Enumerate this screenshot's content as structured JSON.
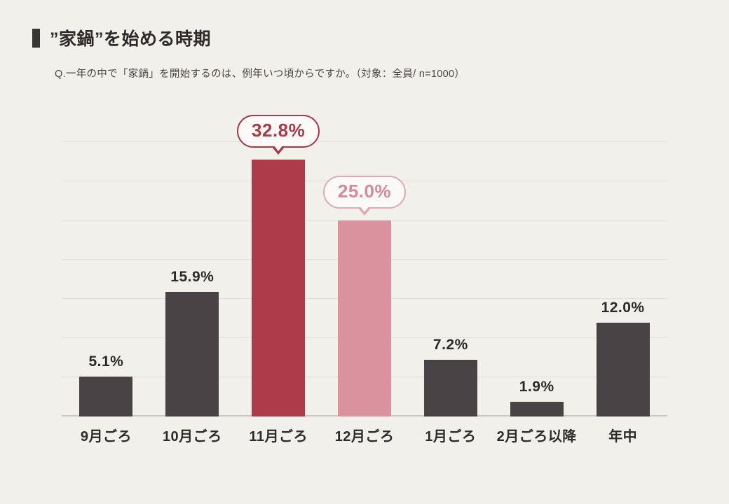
{
  "page": {
    "title": "”家鍋”を始める時期",
    "subtitle": "Q.一年の中で「家鍋」を開始するのは、例年いつ頃からですか。（対象：全員/ n=1000）"
  },
  "chart_data": {
    "type": "bar",
    "title": "”家鍋”を始める時期",
    "subtitle": "Q.一年の中で「家鍋」を開始するのは、例年いつ頃からですか。（対象：全員/ n=1000）",
    "categories": [
      "9月ごろ",
      "10月ごろ",
      "11月ごろ",
      "12月ごろ",
      "1月ごろ",
      "2月ごろ以降",
      "年中"
    ],
    "values": [
      5.1,
      15.9,
      32.8,
      25.0,
      7.2,
      1.9,
      12.0
    ],
    "value_labels": [
      "5.1%",
      "15.9%",
      "32.8%",
      "25.0%",
      "7.2%",
      "1.9%",
      "12.0%"
    ],
    "bar_styles": [
      "default",
      "default",
      "primary",
      "secondary",
      "default",
      "default",
      "default"
    ],
    "xlabel": "",
    "ylabel": "",
    "ylim": [
      0,
      35
    ],
    "grid": true,
    "gridline_interval": 5,
    "legend": "none",
    "colors": {
      "background": "#f2f0ea",
      "bar_default": "#494345",
      "bar_highlight_primary": "#ae3b49",
      "bar_highlight_secondary": "#d9929e",
      "callout_primary_text": "#a93b49",
      "callout_secondary_text": "#d78a99",
      "gridline": "#e3dfd7",
      "text": "#2e2a2b"
    }
  }
}
